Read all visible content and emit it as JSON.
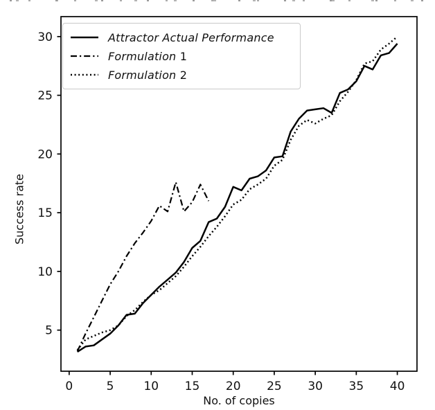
{
  "chart_data": {
    "type": "line",
    "xlabel": "No. of copies",
    "ylabel": "Success rate",
    "xlim": [
      -1.0,
      42.4
    ],
    "ylim": [
      1.5,
      31.7
    ],
    "xticks": [
      0,
      5,
      10,
      15,
      20,
      25,
      30,
      35,
      40
    ],
    "yticks": [
      5,
      10,
      15,
      20,
      25,
      30
    ],
    "grid": false,
    "legend": {
      "position": "upper-left",
      "border_color": "#c9c9c9"
    },
    "axis_color": "#000000",
    "series": [
      {
        "name": "Attractor Actual Performance",
        "style": "solid",
        "color": "#000000",
        "x": [
          1,
          2,
          3,
          4,
          5,
          6,
          7,
          8,
          9,
          10,
          11,
          12,
          13,
          14,
          15,
          16,
          17,
          18,
          19,
          20,
          21,
          22,
          23,
          24,
          25,
          26,
          27,
          28,
          29,
          30,
          31,
          32,
          33,
          34,
          35,
          36,
          37,
          38,
          39,
          40
        ],
        "y": [
          3.15,
          3.6,
          3.7,
          4.2,
          4.7,
          5.4,
          6.3,
          6.4,
          7.3,
          8.0,
          8.7,
          9.3,
          9.9,
          10.8,
          12.0,
          12.6,
          14.2,
          14.5,
          15.5,
          17.2,
          16.9,
          17.9,
          18.1,
          18.6,
          19.7,
          19.8,
          21.9,
          23.0,
          23.7,
          23.8,
          23.9,
          23.5,
          25.2,
          25.5,
          26.2,
          27.5,
          27.2,
          28.4,
          28.6,
          29.4
        ]
      },
      {
        "name": "Formulation 1",
        "style": "dashdot",
        "color": "#000000",
        "x": [
          1,
          2,
          3,
          4,
          5,
          6,
          7,
          8,
          9,
          10,
          11,
          12,
          13,
          14,
          15,
          16,
          17
        ],
        "y": [
          3.2,
          4.7,
          6.1,
          7.5,
          8.9,
          10.0,
          11.3,
          12.4,
          13.3,
          14.3,
          15.6,
          15.1,
          17.6,
          15.1,
          15.9,
          17.4,
          16.0
        ]
      },
      {
        "name": "Formulation 2",
        "style": "dotted",
        "color": "#000000",
        "x": [
          1,
          2,
          3,
          4,
          5,
          6,
          7,
          8,
          9,
          10,
          11,
          12,
          13,
          14,
          15,
          16,
          17,
          18,
          19,
          20,
          21,
          22,
          23,
          24,
          25,
          26,
          27,
          28,
          29,
          30,
          31,
          32,
          33,
          34,
          35,
          36,
          37,
          38,
          39,
          40
        ],
        "y": [
          3.3,
          4.2,
          4.5,
          4.8,
          5.0,
          5.4,
          6.2,
          6.7,
          7.4,
          8.0,
          8.4,
          9.0,
          9.6,
          10.4,
          11.3,
          12.1,
          13.0,
          13.8,
          14.7,
          15.7,
          16.1,
          17.0,
          17.4,
          17.9,
          19.0,
          19.5,
          21.2,
          22.4,
          22.9,
          22.6,
          23.0,
          23.3,
          24.5,
          25.3,
          26.3,
          27.7,
          27.9,
          28.9,
          29.4,
          30.0
        ]
      }
    ]
  }
}
